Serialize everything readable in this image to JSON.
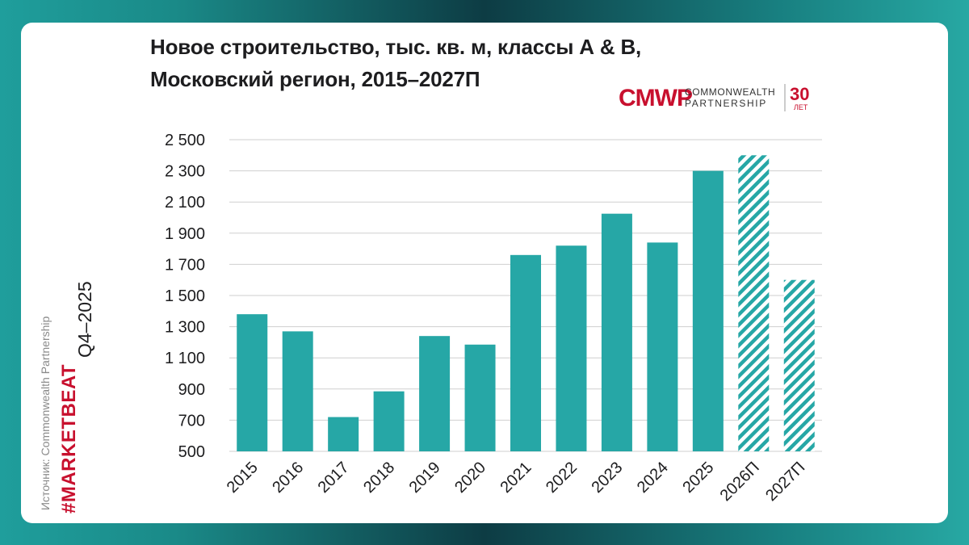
{
  "title_lines": [
    "Новое строительство, тыс. кв. м, классы А & В,",
    "Московский регион, 2015–2027П"
  ],
  "logo": {
    "mark": "CMWP",
    "line1": "COMMONWEALTH",
    "line2": "PARTNERSHIP",
    "years": "30",
    "years_label": "ЛЕТ",
    "color": "#c8102e"
  },
  "sidebar": {
    "source": "Источник: Commonwealth Partnership",
    "tag": "#MARKETBEAT",
    "period": "Q4–2025"
  },
  "chart_data": {
    "type": "bar",
    "categories": [
      "2015",
      "2016",
      "2017",
      "2018",
      "2019",
      "2020",
      "2021",
      "2022",
      "2023",
      "2024",
      "2025",
      "2026П",
      "2027П"
    ],
    "values": [
      1380,
      1270,
      720,
      885,
      1240,
      1185,
      1760,
      1820,
      2025,
      1840,
      2300,
      2400,
      1600
    ],
    "forecast": [
      false,
      false,
      false,
      false,
      false,
      false,
      false,
      false,
      false,
      false,
      false,
      true,
      true
    ],
    "ylim": [
      500,
      2500
    ],
    "yticks": [
      500,
      700,
      900,
      1100,
      1300,
      1500,
      1700,
      1900,
      2100,
      2300,
      2500
    ],
    "ytick_labels": [
      "500",
      "700",
      "900",
      "1 100",
      "1 300",
      "1 500",
      "1 700",
      "1 900",
      "2 100",
      "2 300",
      "2 500"
    ],
    "grid": true,
    "bar_color": "#26a7a6",
    "grid_color": "#cfcfcf"
  }
}
